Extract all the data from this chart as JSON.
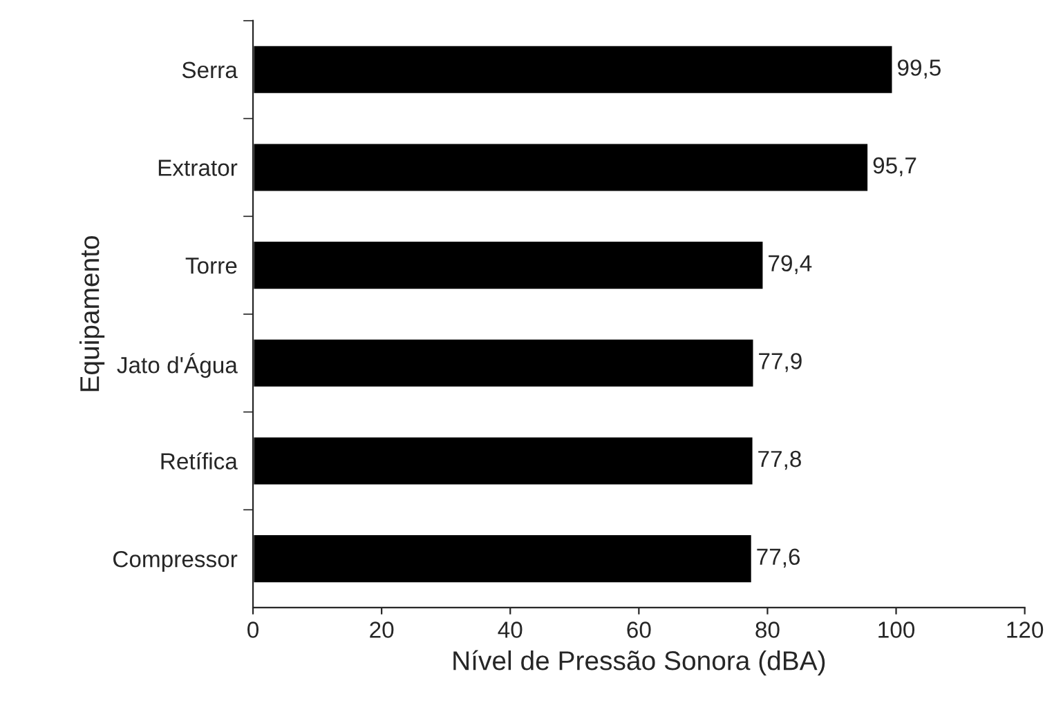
{
  "chart_data": {
    "type": "bar",
    "orientation": "horizontal",
    "xlabel": "Nível de Pressão Sonora (dBA)",
    "ylabel": "Equipamento",
    "categories": [
      "Serra",
      "Extrator",
      "Torre",
      "Jato d'Água",
      "Retífica",
      "Compressor"
    ],
    "values": [
      99.5,
      95.7,
      79.4,
      77.9,
      77.8,
      77.6
    ],
    "value_labels": [
      "99,5",
      "95,7",
      "79,4",
      "77,9",
      "77,8",
      "77,6"
    ],
    "color": "#000000",
    "xlim": [
      0,
      120
    ],
    "xticks": [
      0,
      20,
      40,
      60,
      80,
      100,
      120
    ],
    "grid": false,
    "legend": false
  }
}
